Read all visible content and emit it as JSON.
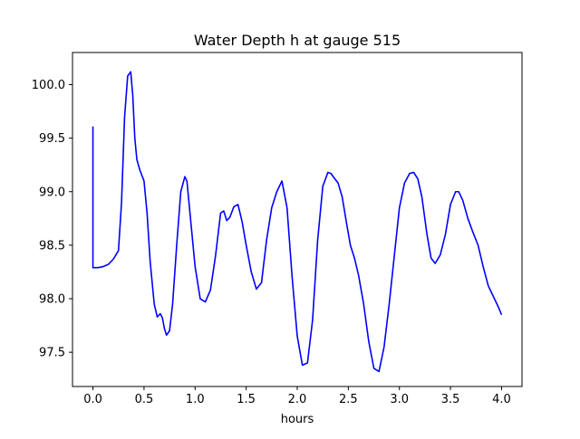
{
  "chart_data": {
    "type": "line",
    "title": "Water Depth h at gauge 515",
    "xlabel": "hours",
    "ylabel": "",
    "xlim": [
      -0.2,
      4.2
    ],
    "ylim": [
      97.18,
      100.3
    ],
    "xticks": [
      0.0,
      0.5,
      1.0,
      1.5,
      2.0,
      2.5,
      3.0,
      3.5,
      4.0
    ],
    "xtick_labels": [
      "0.0",
      "0.5",
      "1.0",
      "1.5",
      "2.0",
      "2.5",
      "3.0",
      "3.5",
      "4.0"
    ],
    "yticks": [
      97.5,
      98.0,
      98.5,
      99.0,
      99.5,
      100.0
    ],
    "ytick_labels": [
      "97.5",
      "98.0",
      "98.5",
      "99.0",
      "99.5",
      "100.0"
    ],
    "grid": false,
    "series": [
      {
        "color": "#0000ff",
        "x": [
          0.0,
          0.0,
          0.05,
          0.1,
          0.15,
          0.2,
          0.25,
          0.28,
          0.31,
          0.34,
          0.37,
          0.39,
          0.41,
          0.43,
          0.46,
          0.5,
          0.53,
          0.56,
          0.6,
          0.63,
          0.66,
          0.68,
          0.7,
          0.72,
          0.75,
          0.78,
          0.82,
          0.86,
          0.9,
          0.92,
          0.95,
          1.0,
          1.05,
          1.1,
          1.15,
          1.2,
          1.25,
          1.28,
          1.31,
          1.34,
          1.38,
          1.42,
          1.46,
          1.5,
          1.55,
          1.6,
          1.65,
          1.7,
          1.75,
          1.8,
          1.85,
          1.9,
          1.95,
          2.0,
          2.05,
          2.1,
          2.15,
          2.2,
          2.25,
          2.3,
          2.33,
          2.36,
          2.4,
          2.44,
          2.48,
          2.52,
          2.56,
          2.6,
          2.65,
          2.7,
          2.75,
          2.8,
          2.85,
          2.9,
          2.95,
          3.0,
          3.05,
          3.1,
          3.14,
          3.18,
          3.22,
          3.27,
          3.31,
          3.35,
          3.4,
          3.45,
          3.5,
          3.55,
          3.58,
          3.62,
          3.67,
          3.72,
          3.77,
          3.82,
          3.87,
          3.92,
          3.97,
          4.0
        ],
        "y": [
          99.61,
          98.29,
          98.29,
          98.3,
          98.32,
          98.37,
          98.45,
          98.9,
          99.7,
          100.08,
          100.12,
          99.9,
          99.5,
          99.3,
          99.2,
          99.1,
          98.8,
          98.35,
          97.95,
          97.83,
          97.86,
          97.82,
          97.72,
          97.66,
          97.7,
          97.95,
          98.5,
          99.0,
          99.14,
          99.1,
          98.8,
          98.3,
          98.0,
          97.97,
          98.08,
          98.4,
          98.8,
          98.82,
          98.73,
          98.76,
          98.86,
          98.88,
          98.72,
          98.5,
          98.25,
          98.09,
          98.15,
          98.55,
          98.85,
          99.0,
          99.1,
          98.85,
          98.2,
          97.65,
          97.38,
          97.4,
          97.8,
          98.55,
          99.05,
          99.18,
          99.17,
          99.13,
          99.08,
          98.95,
          98.72,
          98.5,
          98.38,
          98.22,
          97.95,
          97.6,
          97.35,
          97.32,
          97.55,
          97.95,
          98.4,
          98.85,
          99.08,
          99.17,
          99.18,
          99.12,
          98.95,
          98.6,
          98.38,
          98.33,
          98.41,
          98.6,
          98.88,
          99.0,
          99.0,
          98.92,
          98.75,
          98.62,
          98.5,
          98.3,
          98.12,
          98.02,
          97.92,
          97.85
        ]
      }
    ]
  }
}
